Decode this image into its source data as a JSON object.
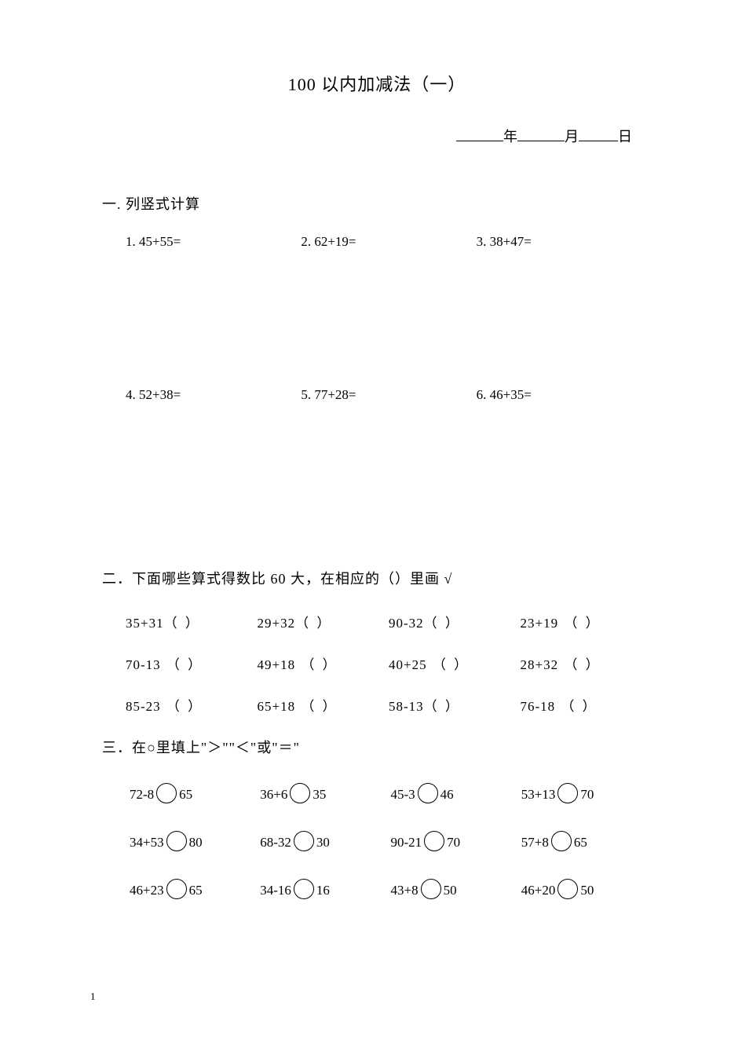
{
  "title": "100 以内加减法（一）",
  "date": {
    "year_label": "年",
    "month_label": "月",
    "day_label": "日"
  },
  "section1": {
    "heading": "一. 列竖式计算",
    "row1": {
      "p1": "1.  45+55=",
      "p2": "2.  62+19=",
      "p3": "3.  38+47="
    },
    "row2": {
      "p1": "4.  52+38=",
      "p2": "5.  77+28=",
      "p3": "6. 46+35="
    }
  },
  "section2": {
    "heading": "二．下面哪些算式得数比 60 大，在相应的（）里画 √",
    "rows": [
      {
        "c1": "35+31",
        "c2": "29+32",
        "c3": "90-32",
        "c4": "23+19"
      },
      {
        "c1": "70-13",
        "c2": "49+18",
        "c3": "40+25",
        "c4": "28+32"
      },
      {
        "c1": "85-23",
        "c2": "65+18",
        "c3": "58-13",
        "c4": "76-18"
      }
    ]
  },
  "section3": {
    "heading": "三．在○里填上\"＞\"\"＜\"或\"＝\"",
    "rows": [
      {
        "l1": "72-8",
        "r1": "65",
        "l2": "36+6",
        "r2": "35",
        "l3": "45-3",
        "r3": "46",
        "l4": "53+13",
        "r4": "70"
      },
      {
        "l1": "34+53",
        "r1": "80",
        "l2": "68-32",
        "r2": "30",
        "l3": "90-21",
        "r3": "70",
        "l4": "57+8",
        "r4": "65"
      },
      {
        "l1": "46+23",
        "r1": "65",
        "l2": "34-16",
        "r2": "16",
        "l3": "43+8",
        "r3": "50",
        "l4": "46+20",
        "r4": "50"
      }
    ]
  },
  "page_number": "1"
}
